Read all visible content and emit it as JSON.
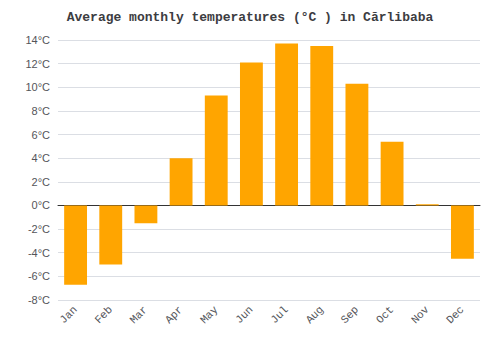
{
  "chart_data": {
    "type": "bar",
    "title": "Average monthly temperatures (°C ) in Cărlibaba",
    "categories": [
      "Jan",
      "Feb",
      "Mar",
      "Apr",
      "May",
      "Jun",
      "Jul",
      "Aug",
      "Sep",
      "Oct",
      "Nov",
      "Dec"
    ],
    "values": [
      -6.7,
      -5.0,
      -1.5,
      4.0,
      9.3,
      12.1,
      13.7,
      13.5,
      10.3,
      5.4,
      0.1,
      -4.5
    ],
    "color": "#FFA500",
    "ylim": [
      -8,
      14
    ],
    "yticks": [
      {
        "value": -8,
        "label": "-8°C"
      },
      {
        "value": -6,
        "label": "-6°C"
      },
      {
        "value": -4,
        "label": "-4°C"
      },
      {
        "value": -2,
        "label": "-2°C"
      },
      {
        "value": 0,
        "label": "0°C"
      },
      {
        "value": 2,
        "label": "2°C"
      },
      {
        "value": 4,
        "label": "4°C"
      },
      {
        "value": 6,
        "label": "6°C"
      },
      {
        "value": 8,
        "label": "8°C"
      },
      {
        "value": 10,
        "label": "10°C"
      },
      {
        "value": 12,
        "label": "12°C"
      },
      {
        "value": 14,
        "label": "14°C"
      }
    ],
    "grid": true
  }
}
